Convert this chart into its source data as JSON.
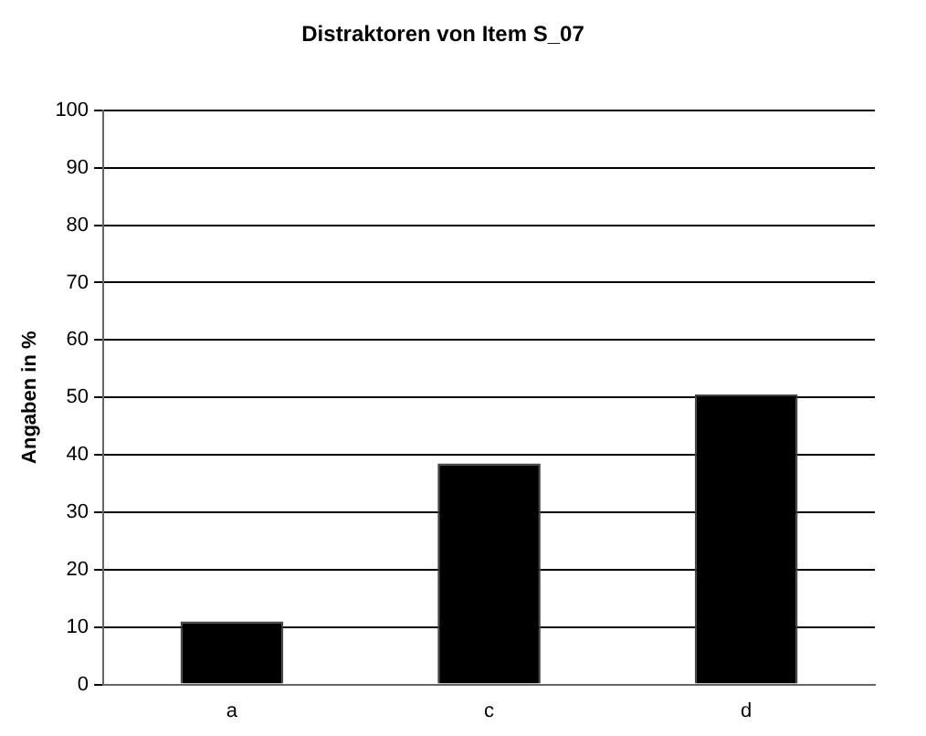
{
  "chart_data": {
    "type": "bar",
    "title": "Distraktoren von Item S_07",
    "ylabel": "Angaben in %",
    "categories": [
      "a",
      "c",
      "d"
    ],
    "values": [
      11,
      38.5,
      50.5
    ],
    "color": "#000000",
    "ylim": [
      0,
      100
    ],
    "yticks": [
      0,
      10,
      20,
      30,
      40,
      50,
      60,
      70,
      80,
      90,
      100
    ],
    "grid": "y"
  }
}
